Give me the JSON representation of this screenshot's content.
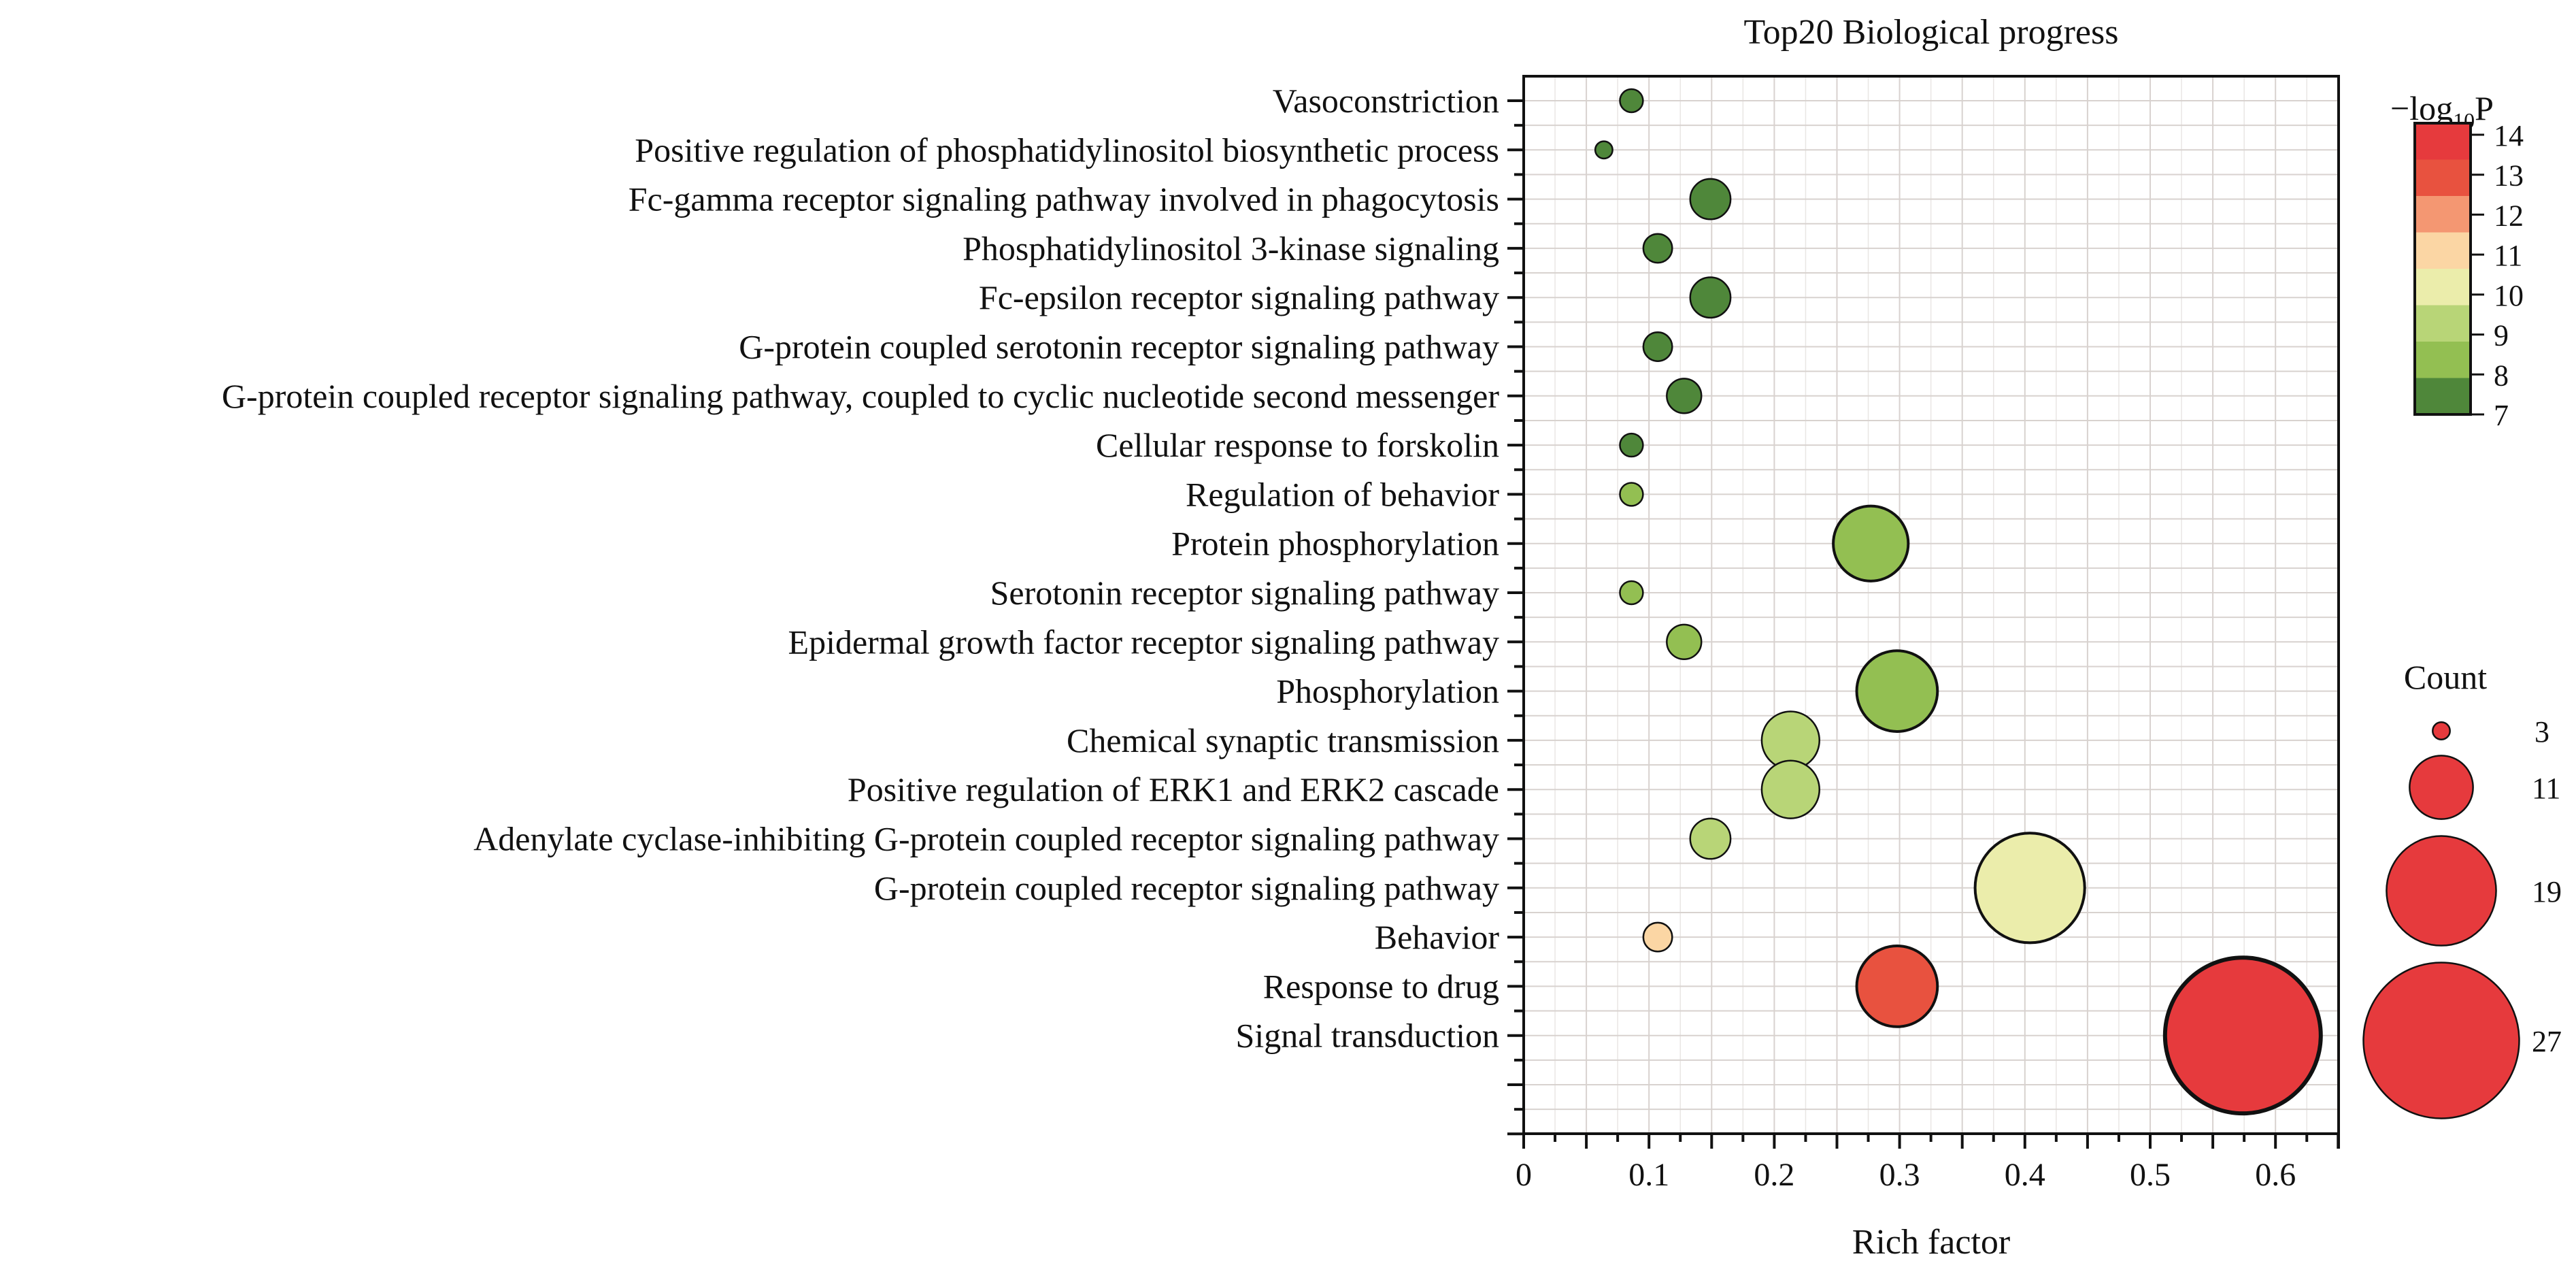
{
  "chart_data": {
    "type": "scatter",
    "subtype": "bubble",
    "title": "Top20 Biological progress",
    "xlabel": "Rich factor",
    "ylabel": "",
    "xlim": [
      0,
      0.65
    ],
    "x_ticks": [
      0,
      0.1,
      0.2,
      0.3,
      0.4,
      0.5,
      0.6
    ],
    "x_tick_labels": [
      "0",
      "0.1",
      "0.2",
      "0.3",
      "0.4",
      "0.5",
      "0.6"
    ],
    "grid": true,
    "categories": [
      "Vasoconstriction",
      "Positive regulation of phosphatidylinositol biosynthetic process",
      "Fc-gamma receptor signaling pathway involved in phagocytosis",
      "Phosphatidylinositol 3-kinase signaling",
      "Fc-epsilon receptor signaling pathway",
      "G-protein coupled serotonin receptor signaling pathway",
      "G-protein coupled receptor signaling pathway, coupled to cyclic nucleotide second messenger",
      "Cellular response to forskolin",
      "Regulation of behavior",
      "Protein phosphorylation",
      "Serotonin receptor signaling pathway",
      "Epidermal growth factor receptor signaling pathway",
      "Phosphorylation",
      "Chemical synaptic transmission",
      "Positive regulation of ERK1 and ERK2 cascade",
      "Adenylate cyclase-inhibiting G-protein coupled receptor signaling pathway",
      "G-protein coupled receptor signaling pathway",
      "Behavior",
      "Response to drug",
      "Signal transduction"
    ],
    "points": [
      {
        "term": "Vasoconstriction",
        "rich_factor": 0.086,
        "count": 4,
        "neg_log10_p": 7.5
      },
      {
        "term": "Positive regulation of phosphatidylinositol biosynthetic process",
        "rich_factor": 0.064,
        "count": 3,
        "neg_log10_p": 7.5
      },
      {
        "term": "Fc-gamma receptor signaling pathway involved in phagocytosis",
        "rich_factor": 0.149,
        "count": 7,
        "neg_log10_p": 7.5
      },
      {
        "term": "Phosphatidylinositol 3-kinase signaling",
        "rich_factor": 0.107,
        "count": 5,
        "neg_log10_p": 7.5
      },
      {
        "term": "Fc-epsilon receptor signaling pathway",
        "rich_factor": 0.149,
        "count": 7,
        "neg_log10_p": 7.5
      },
      {
        "term": "G-protein coupled serotonin receptor signaling pathway",
        "rich_factor": 0.107,
        "count": 5,
        "neg_log10_p": 7.5
      },
      {
        "term": "G-protein coupled receptor signaling pathway, coupled to cyclic nucleotide second messenger",
        "rich_factor": 0.128,
        "count": 6,
        "neg_log10_p": 7.5
      },
      {
        "term": "Cellular response to forskolin",
        "rich_factor": 0.086,
        "count": 4,
        "neg_log10_p": 7.5
      },
      {
        "term": "Regulation of behavior",
        "rich_factor": 0.086,
        "count": 4,
        "neg_log10_p": 8.5
      },
      {
        "term": "Protein phosphorylation",
        "rich_factor": 0.277,
        "count": 13,
        "neg_log10_p": 8.5
      },
      {
        "term": "Serotonin receptor signaling pathway",
        "rich_factor": 0.086,
        "count": 4,
        "neg_log10_p": 8.5
      },
      {
        "term": "Epidermal growth factor receptor signaling pathway",
        "rich_factor": 0.128,
        "count": 6,
        "neg_log10_p": 8.5
      },
      {
        "term": "Phosphorylation",
        "rich_factor": 0.298,
        "count": 14,
        "neg_log10_p": 8.5
      },
      {
        "term": "Chemical synaptic transmission",
        "rich_factor": 0.213,
        "count": 10,
        "neg_log10_p": 9.5
      },
      {
        "term": "Positive regulation of ERK1 and ERK2 cascade",
        "rich_factor": 0.213,
        "count": 10,
        "neg_log10_p": 9.5
      },
      {
        "term": "Adenylate cyclase-inhibiting G-protein coupled receptor signaling pathway",
        "rich_factor": 0.149,
        "count": 7,
        "neg_log10_p": 9.5
      },
      {
        "term": "G-protein coupled receptor signaling pathway",
        "rich_factor": 0.404,
        "count": 19,
        "neg_log10_p": 10.5
      },
      {
        "term": "Behavior",
        "rich_factor": 0.107,
        "count": 5,
        "neg_log10_p": 11.5
      },
      {
        "term": "Response to drug",
        "rich_factor": 0.298,
        "count": 14,
        "neg_log10_p": 13.5
      },
      {
        "term": "Signal transduction",
        "rich_factor": 0.574,
        "count": 27,
        "neg_log10_p": 14.5
      }
    ],
    "empty_rows_below": 2,
    "color_legend": {
      "title_prefix": "−log",
      "title_sub": "10",
      "title_suffix": "P",
      "ticks": [
        7,
        8,
        9,
        10,
        11,
        12,
        13,
        14
      ],
      "bins": [
        {
          "from": 7,
          "color": "#4f873a"
        },
        {
          "from": 8,
          "color": "#93bf52"
        },
        {
          "from": 9,
          "color": "#b8d577"
        },
        {
          "from": 10,
          "color": "#ebedab"
        },
        {
          "from": 11,
          "color": "#fbd6a4"
        },
        {
          "from": 12,
          "color": "#f49772"
        },
        {
          "from": 13,
          "color": "#e8523f"
        },
        {
          "from": 14,
          "color": "#e63a3d"
        }
      ]
    },
    "size_legend": {
      "title": "Count",
      "values": [
        3,
        11,
        19,
        27
      ],
      "labels": [
        "3",
        "11",
        "19",
        "27"
      ],
      "color": "#e63a3d"
    }
  }
}
